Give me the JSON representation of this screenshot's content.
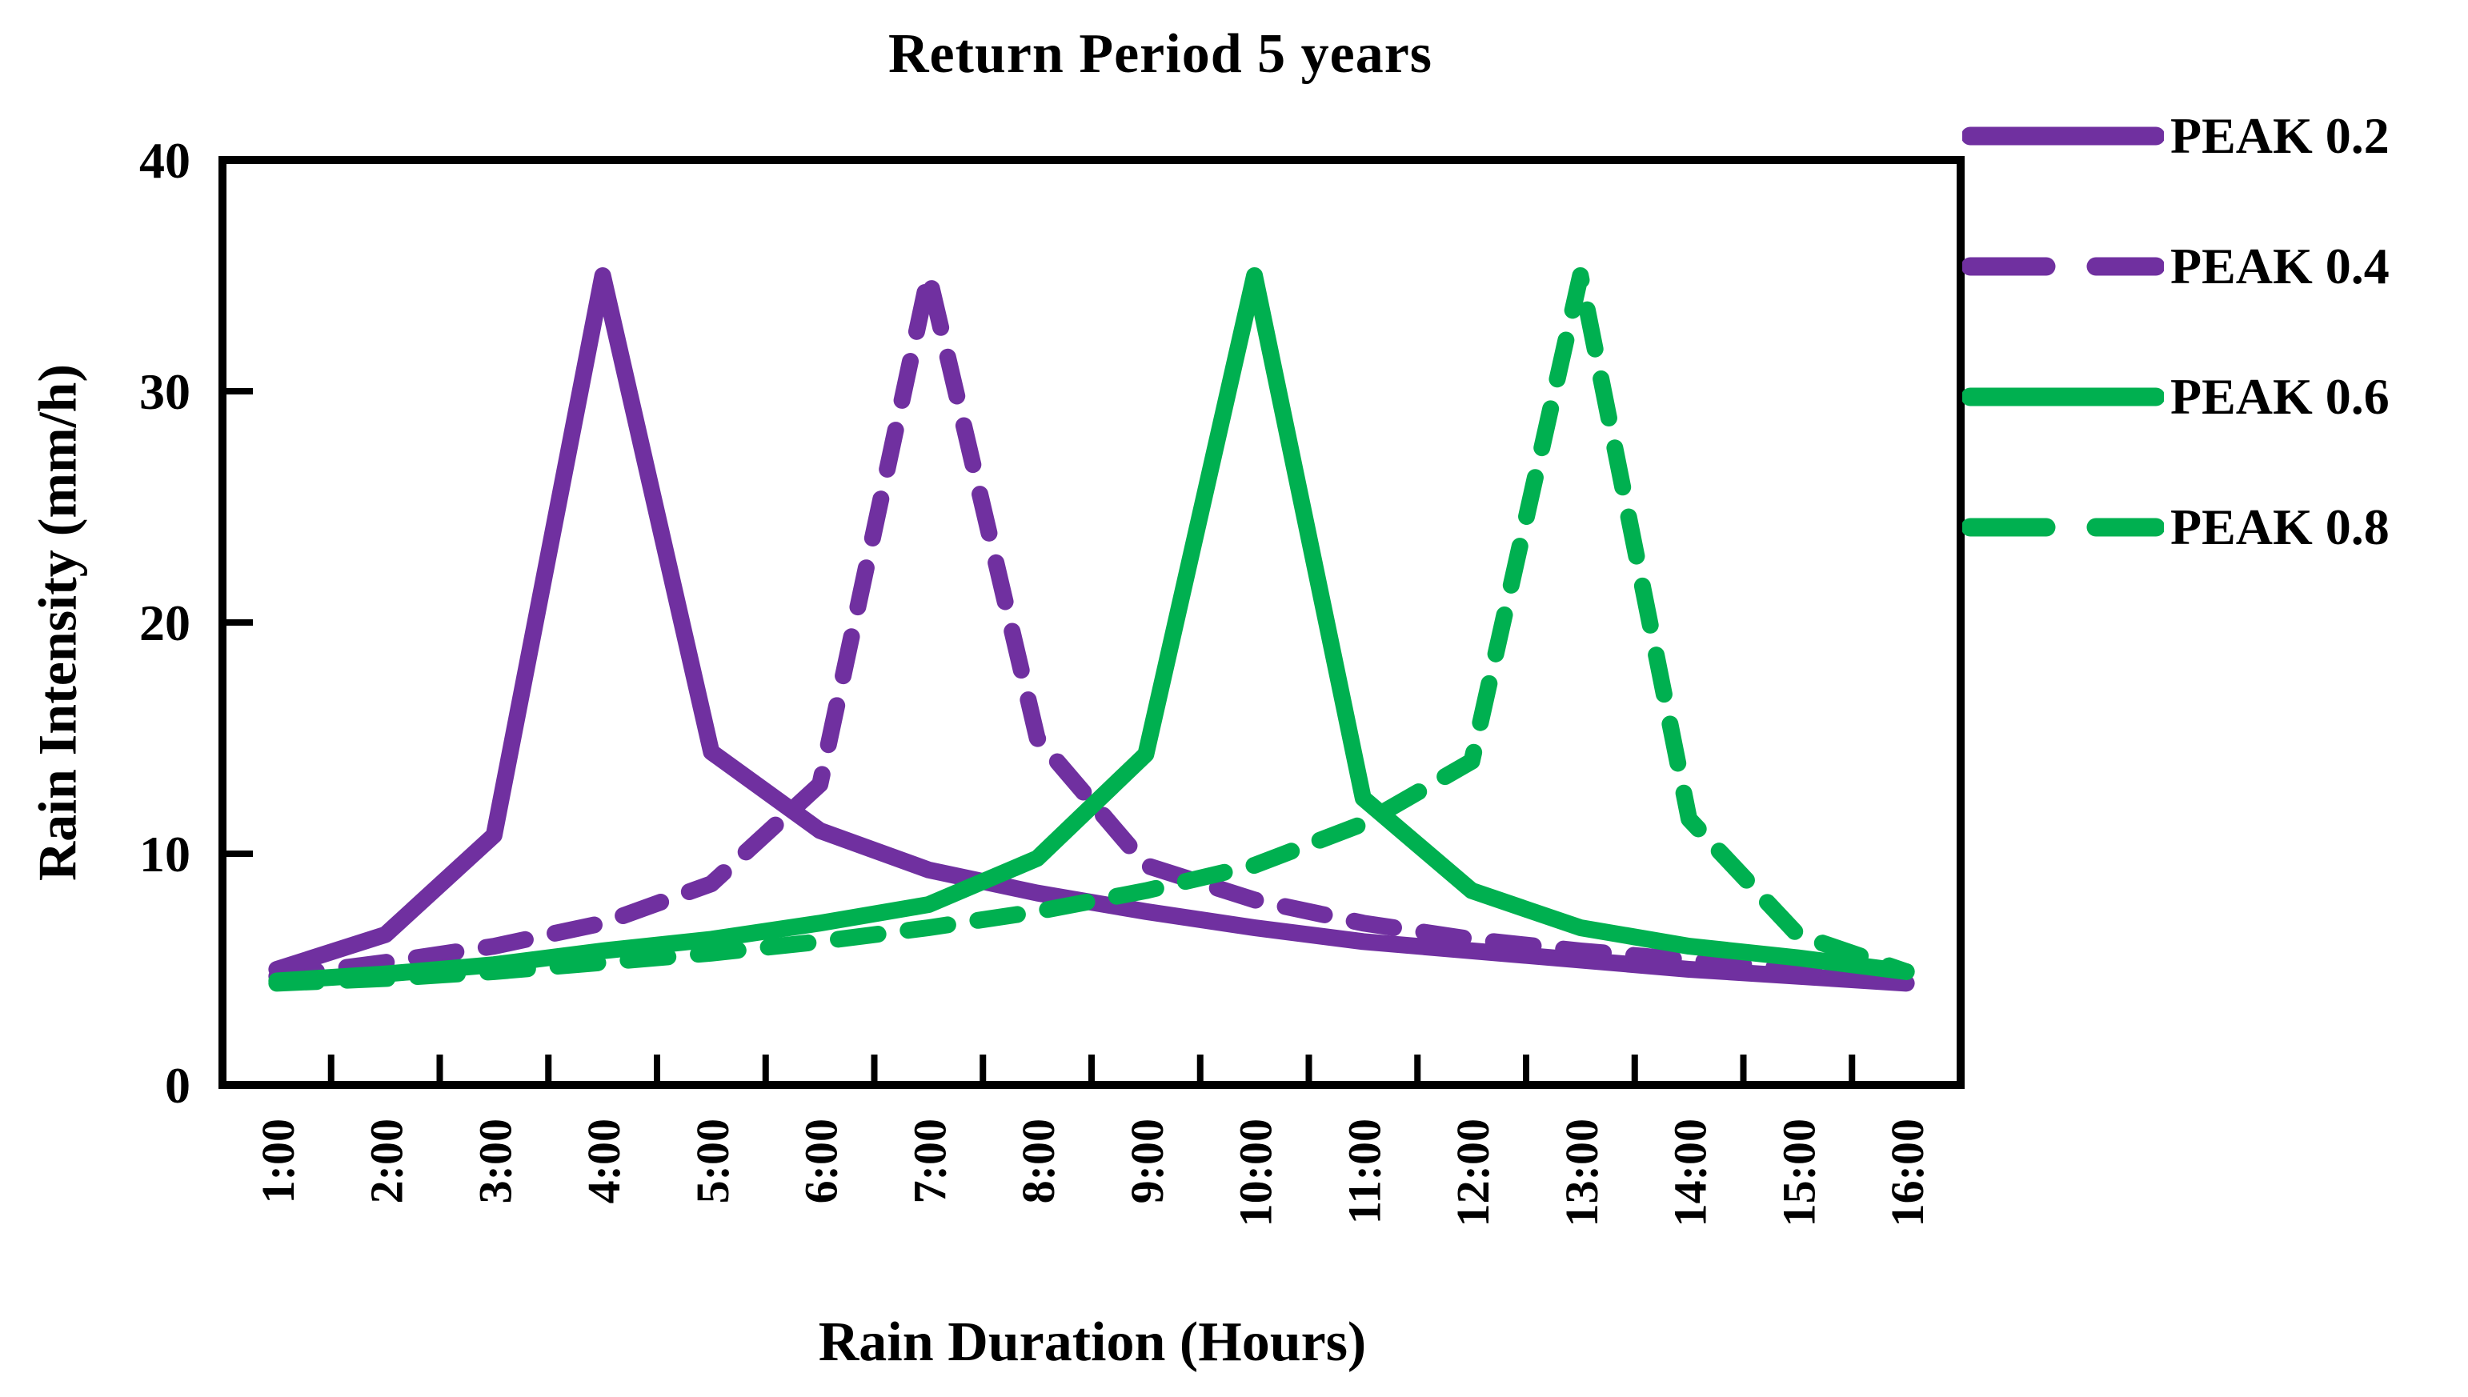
{
  "title": "Return Period 5 years",
  "axes": {
    "y_label": "Rain Intensity (mm/h)",
    "x_label": "Rain Duration (Hours)"
  },
  "colors": {
    "purple": "#7030A0",
    "green": "#00B050",
    "axis": "#000000"
  },
  "chart_data": {
    "type": "line",
    "title": "Return Period 5 years",
    "xlabel": "Rain Duration (Hours)",
    "ylabel": "Rain Intensity (mm/h)",
    "ylim": [
      0,
      40
    ],
    "yticks": [
      0,
      10,
      20,
      30,
      40
    ],
    "grid": false,
    "legend_position": "top-right",
    "categories": [
      "1:00",
      "2:00",
      "3:00",
      "4:00",
      "5:00",
      "6:00",
      "7:00",
      "8:00",
      "9:00",
      "10:00",
      "11:00",
      "12:00",
      "13:00",
      "14:00",
      "15:00",
      "16:00"
    ],
    "series": [
      {
        "name": "PEAK 0.2",
        "color": "#7030A0",
        "dash": "solid",
        "values": [
          5,
          6.5,
          10.8,
          35,
          14.4,
          11,
          9.3,
          8.3,
          7.5,
          6.8,
          6.2,
          5.8,
          5.4,
          5,
          4.7,
          4.4
        ]
      },
      {
        "name": "PEAK 0.4",
        "color": "#7030A0",
        "dash": "dashed",
        "values": [
          4.7,
          5.3,
          6,
          7,
          8.7,
          13,
          35,
          15,
          9.5,
          8,
          7,
          6.3,
          5.8,
          5.4,
          5,
          4.7
        ]
      },
      {
        "name": "PEAK 0.6",
        "color": "#00B050",
        "dash": "solid",
        "values": [
          4.5,
          4.8,
          5.2,
          5.8,
          6.3,
          7,
          7.8,
          9.8,
          14.3,
          35,
          12.4,
          8.4,
          6.8,
          6,
          5.5,
          4.9
        ]
      },
      {
        "name": "PEAK 0.8",
        "color": "#00B050",
        "dash": "dashed",
        "values": [
          4.4,
          4.6,
          4.9,
          5.3,
          5.7,
          6.2,
          6.8,
          7.5,
          8.4,
          9.5,
          11.3,
          14,
          35,
          11.5,
          6.5,
          4.9
        ]
      }
    ]
  }
}
